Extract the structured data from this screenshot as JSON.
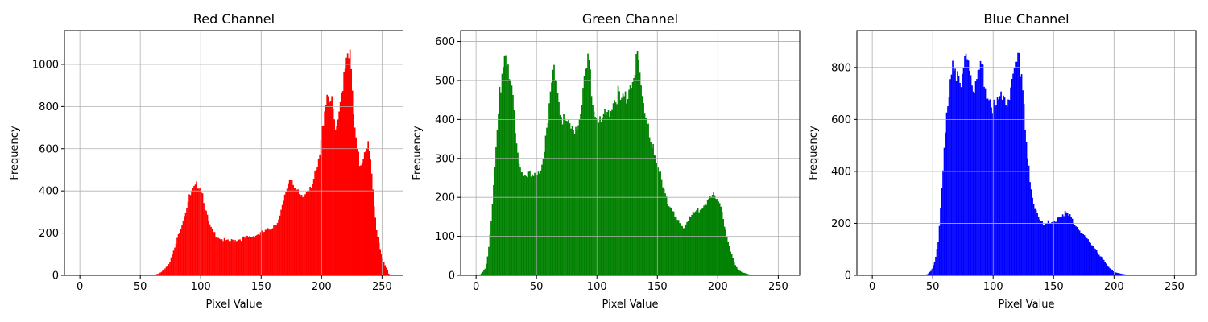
{
  "chart_data": [
    {
      "type": "bar",
      "title": "Red Channel",
      "xlabel": "Pixel Value",
      "ylabel": "Frequency",
      "color": "#ff0000",
      "xlim": [
        -12.75,
        267.75
      ],
      "ylim": [
        0,
        1160
      ],
      "xticks": [
        0,
        50,
        100,
        150,
        200,
        250
      ],
      "yticks": [
        0,
        200,
        400,
        600,
        800,
        1000
      ],
      "grid": true,
      "bins": 256,
      "profile": [
        [
          0,
          0
        ],
        [
          55,
          0
        ],
        [
          62,
          3
        ],
        [
          66,
          10
        ],
        [
          70,
          30
        ],
        [
          74,
          60
        ],
        [
          78,
          120
        ],
        [
          82,
          200
        ],
        [
          86,
          280
        ],
        [
          90,
          360
        ],
        [
          93,
          395
        ],
        [
          96,
          415
        ],
        [
          98,
          440
        ],
        [
          100,
          420
        ],
        [
          102,
          380
        ],
        [
          104,
          310
        ],
        [
          106,
          260
        ],
        [
          108,
          225
        ],
        [
          110,
          205
        ],
        [
          114,
          185
        ],
        [
          118,
          170
        ],
        [
          122,
          160
        ],
        [
          126,
          165
        ],
        [
          130,
          170
        ],
        [
          135,
          175
        ],
        [
          140,
          180
        ],
        [
          145,
          190
        ],
        [
          150,
          200
        ],
        [
          155,
          210
        ],
        [
          160,
          235
        ],
        [
          165,
          265
        ],
        [
          168,
          330
        ],
        [
          170,
          380
        ],
        [
          172,
          430
        ],
        [
          174,
          470
        ],
        [
          176,
          460
        ],
        [
          178,
          420
        ],
        [
          180,
          390
        ],
        [
          183,
          360
        ],
        [
          186,
          380
        ],
        [
          189,
          420
        ],
        [
          192,
          440
        ],
        [
          195,
          470
        ],
        [
          198,
          540
        ],
        [
          200,
          650
        ],
        [
          202,
          780
        ],
        [
          204,
          860
        ],
        [
          206,
          870
        ],
        [
          208,
          820
        ],
        [
          210,
          750
        ],
        [
          212,
          660
        ],
        [
          214,
          720
        ],
        [
          216,
          840
        ],
        [
          218,
          950
        ],
        [
          220,
          1040
        ],
        [
          222,
          1100
        ],
        [
          224,
          1000
        ],
        [
          226,
          800
        ],
        [
          228,
          640
        ],
        [
          230,
          570
        ],
        [
          232,
          520
        ],
        [
          234,
          560
        ],
        [
          236,
          610
        ],
        [
          238,
          630
        ],
        [
          240,
          560
        ],
        [
          242,
          430
        ],
        [
          244,
          290
        ],
        [
          246,
          200
        ],
        [
          248,
          140
        ],
        [
          250,
          90
        ],
        [
          252,
          55
        ],
        [
          254,
          30
        ],
        [
          256,
          0
        ]
      ]
    },
    {
      "type": "bar",
      "title": "Green Channel",
      "xlabel": "Pixel Value",
      "ylabel": "Frequency",
      "color": "#008000",
      "xlim": [
        -12.75,
        267.75
      ],
      "ylim": [
        0,
        628
      ],
      "xticks": [
        0,
        50,
        100,
        150,
        200,
        250
      ],
      "yticks": [
        0,
        100,
        200,
        300,
        400,
        500,
        600
      ],
      "grid": true,
      "bins": 256,
      "profile": [
        [
          0,
          0
        ],
        [
          4,
          3
        ],
        [
          8,
          20
        ],
        [
          10,
          60
        ],
        [
          12,
          120
        ],
        [
          14,
          200
        ],
        [
          16,
          290
        ],
        [
          18,
          390
        ],
        [
          20,
          480
        ],
        [
          22,
          540
        ],
        [
          24,
          590
        ],
        [
          26,
          560
        ],
        [
          28,
          510
        ],
        [
          30,
          460
        ],
        [
          32,
          380
        ],
        [
          34,
          320
        ],
        [
          36,
          290
        ],
        [
          38,
          270
        ],
        [
          40,
          260
        ],
        [
          44,
          255
        ],
        [
          48,
          250
        ],
        [
          52,
          270
        ],
        [
          55,
          300
        ],
        [
          58,
          350
        ],
        [
          61,
          430
        ],
        [
          63,
          500
        ],
        [
          65,
          540
        ],
        [
          67,
          510
        ],
        [
          69,
          450
        ],
        [
          71,
          400
        ],
        [
          73,
          390
        ],
        [
          76,
          380
        ],
        [
          79,
          370
        ],
        [
          82,
          385
        ],
        [
          85,
          400
        ],
        [
          88,
          440
        ],
        [
          90,
          500
        ],
        [
          92,
          540
        ],
        [
          94,
          530
        ],
        [
          96,
          470
        ],
        [
          98,
          420
        ],
        [
          100,
          400
        ],
        [
          103,
          390
        ],
        [
          106,
          400
        ],
        [
          109,
          420
        ],
        [
          112,
          440
        ],
        [
          115,
          460
        ],
        [
          118,
          460
        ],
        [
          121,
          440
        ],
        [
          124,
          460
        ],
        [
          127,
          490
        ],
        [
          130,
          520
        ],
        [
          133,
          560
        ],
        [
          135,
          520
        ],
        [
          137,
          470
        ],
        [
          139,
          430
        ],
        [
          142,
          400
        ],
        [
          145,
          340
        ],
        [
          148,
          300
        ],
        [
          151,
          270
        ],
        [
          154,
          240
        ],
        [
          157,
          210
        ],
        [
          160,
          180
        ],
        [
          163,
          160
        ],
        [
          166,
          140
        ],
        [
          169,
          130
        ],
        [
          172,
          125
        ],
        [
          175,
          140
        ],
        [
          178,
          150
        ],
        [
          181,
          160
        ],
        [
          184,
          170
        ],
        [
          187,
          180
        ],
        [
          190,
          185
        ],
        [
          193,
          195
        ],
        [
          196,
          200
        ],
        [
          199,
          205
        ],
        [
          201,
          200
        ],
        [
          203,
          180
        ],
        [
          205,
          140
        ],
        [
          208,
          90
        ],
        [
          211,
          55
        ],
        [
          214,
          30
        ],
        [
          217,
          15
        ],
        [
          220,
          8
        ],
        [
          225,
          3
        ],
        [
          230,
          0
        ],
        [
          256,
          0
        ]
      ]
    },
    {
      "type": "bar",
      "title": "Blue Channel",
      "xlabel": "Pixel Value",
      "ylabel": "Frequency",
      "color": "#0000ff",
      "xlim": [
        -12.75,
        267.75
      ],
      "ylim": [
        0,
        942
      ],
      "xticks": [
        0,
        50,
        100,
        150,
        200,
        250
      ],
      "yticks": [
        0,
        200,
        400,
        600,
        800
      ],
      "grid": true,
      "bins": 256,
      "profile": [
        [
          0,
          0
        ],
        [
          42,
          0
        ],
        [
          46,
          5
        ],
        [
          49,
          20
        ],
        [
          52,
          60
        ],
        [
          55,
          150
        ],
        [
          57,
          280
        ],
        [
          59,
          430
        ],
        [
          61,
          570
        ],
        [
          63,
          700
        ],
        [
          65,
          790
        ],
        [
          67,
          840
        ],
        [
          69,
          800
        ],
        [
          71,
          740
        ],
        [
          73,
          700
        ],
        [
          75,
          760
        ],
        [
          77,
          860
        ],
        [
          79,
          850
        ],
        [
          81,
          790
        ],
        [
          83,
          730
        ],
        [
          85,
          700
        ],
        [
          87,
          750
        ],
        [
          89,
          790
        ],
        [
          91,
          780
        ],
        [
          93,
          730
        ],
        [
          95,
          700
        ],
        [
          97,
          690
        ],
        [
          99,
          660
        ],
        [
          101,
          640
        ],
        [
          103,
          650
        ],
        [
          105,
          680
        ],
        [
          107,
          700
        ],
        [
          109,
          690
        ],
        [
          111,
          670
        ],
        [
          113,
          680
        ],
        [
          115,
          710
        ],
        [
          117,
          760
        ],
        [
          119,
          800
        ],
        [
          121,
          820
        ],
        [
          123,
          800
        ],
        [
          125,
          700
        ],
        [
          127,
          560
        ],
        [
          129,
          430
        ],
        [
          131,
          330
        ],
        [
          134,
          260
        ],
        [
          137,
          230
        ],
        [
          140,
          210
        ],
        [
          143,
          200
        ],
        [
          146,
          200
        ],
        [
          149,
          200
        ],
        [
          152,
          215
        ],
        [
          155,
          230
        ],
        [
          158,
          240
        ],
        [
          161,
          235
        ],
        [
          164,
          220
        ],
        [
          167,
          205
        ],
        [
          170,
          185
        ],
        [
          173,
          165
        ],
        [
          176,
          145
        ],
        [
          179,
          130
        ],
        [
          182,
          115
        ],
        [
          185,
          100
        ],
        [
          188,
          80
        ],
        [
          191,
          60
        ],
        [
          194,
          40
        ],
        [
          197,
          25
        ],
        [
          200,
          14
        ],
        [
          204,
          8
        ],
        [
          208,
          4
        ],
        [
          212,
          2
        ],
        [
          216,
          0
        ],
        [
          256,
          0
        ]
      ]
    }
  ]
}
